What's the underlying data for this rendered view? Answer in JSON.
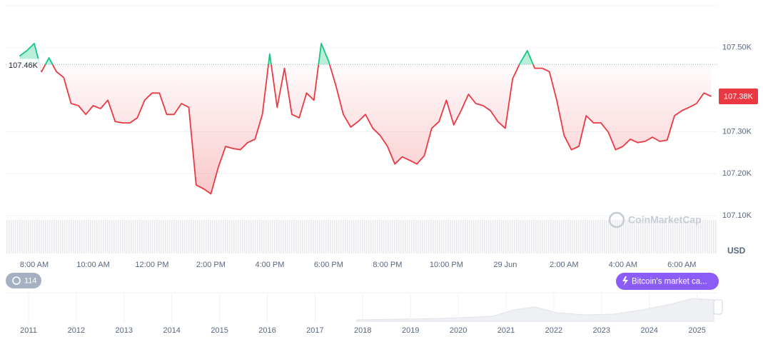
{
  "chart_data": {
    "type": "line",
    "categories": [
      null,
      null,
      "8:00 AM",
      null,
      null,
      null,
      null,
      null,
      null,
      null,
      "10:00 AM",
      null,
      null,
      null,
      null,
      null,
      null,
      null,
      "12:00 PM",
      null,
      null,
      null,
      null,
      null,
      null,
      null,
      "2:00 PM",
      null,
      null,
      null,
      null,
      null,
      null,
      null,
      "4:00 PM",
      null,
      null,
      null,
      null,
      null,
      null,
      null,
      "6:00 PM",
      null,
      null,
      null,
      null,
      null,
      null,
      null,
      "8:00 PM",
      null,
      null,
      null,
      null,
      null,
      null,
      null,
      "10:00 PM",
      null,
      null,
      null,
      null,
      null,
      null,
      null,
      "29 Jun",
      null,
      null,
      null,
      null,
      null,
      null,
      null,
      "2:00 AM",
      null,
      null,
      null,
      null,
      null,
      null,
      null,
      "4:00 AM",
      null,
      null,
      null,
      null,
      null,
      null,
      null,
      "6:00 AM",
      null,
      null,
      null,
      null
    ],
    "series": [
      {
        "name": "Bitcoin",
        "color": "#ea3943",
        "values": [
          107480,
          107493,
          107510,
          107443,
          107476,
          107443,
          107429,
          107367,
          107362,
          107341,
          107362,
          107355,
          107375,
          107324,
          107321,
          107321,
          107333,
          107375,
          107392,
          107392,
          107341,
          107341,
          107367,
          107358,
          107173,
          107164,
          107152,
          107215,
          107265,
          107260,
          107257,
          107274,
          107282,
          107341,
          107485,
          107358,
          107451,
          107341,
          107333,
          107392,
          107375,
          107510,
          107468,
          107409,
          107341,
          107311,
          107324,
          107341,
          107308,
          107291,
          107265,
          107223,
          107240,
          107232,
          107223,
          107243,
          107308,
          107324,
          107375,
          107316,
          107350,
          107389,
          107367,
          107362,
          107350,
          107324,
          107308,
          107426,
          107463,
          107493,
          107451,
          107451,
          107443,
          107375,
          107291,
          107257,
          107265,
          107338,
          107321,
          107321,
          107299,
          107257,
          107265,
          107282,
          107274,
          107277,
          107287,
          107277,
          107280,
          107338,
          107350,
          107358,
          107367,
          107392,
          107384
        ]
      }
    ],
    "above_color": "#16c784",
    "reference": {
      "value": 107460,
      "label": "107.46K"
    },
    "last_price_label": "107.38K",
    "ylim": [
      107010,
      107600
    ],
    "yticks": [
      {
        "value": 107500,
        "label": "107.50K"
      },
      {
        "value": 107300,
        "label": "107.30K"
      },
      {
        "value": 107200,
        "label": "107.20K"
      },
      {
        "value": 107100,
        "label": "107.10K"
      }
    ],
    "grid": true,
    "currency": "USD",
    "watermark": "CoinMarketCap"
  },
  "badge": "114",
  "button": "Bitcoin's market ca...",
  "navigator": {
    "years": [
      "2011",
      "2012",
      "2013",
      "2014",
      "2015",
      "2016",
      "2017",
      "2018",
      "2019",
      "2020",
      "2021",
      "2022",
      "2023",
      "2024",
      "2025"
    ]
  }
}
